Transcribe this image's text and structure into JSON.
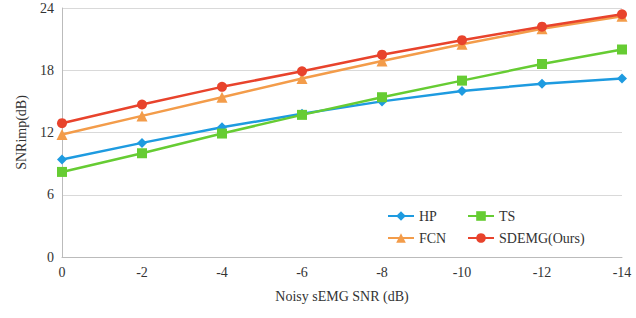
{
  "chart_data": {
    "type": "line",
    "x_label": "Noisy sEMG SNR (dB)",
    "y_label": "SNRimp(dB)",
    "categories": [
      "0",
      "-2",
      "-4",
      "-6",
      "-8",
      "-10",
      "-12",
      "-14"
    ],
    "ylim": [
      0,
      24
    ],
    "yticks": [
      0,
      6,
      12,
      18,
      24
    ],
    "grid": true,
    "legend": "lower right",
    "series": [
      {
        "name": "HP",
        "color": "#1e9be0",
        "marker": "diamond",
        "values": [
          9.4,
          11.0,
          12.5,
          13.8,
          15.0,
          16.0,
          16.7,
          17.2
        ]
      },
      {
        "name": "TS",
        "color": "#66cc33",
        "marker": "square",
        "values": [
          8.2,
          10.0,
          11.9,
          13.7,
          15.4,
          17.0,
          18.6,
          20.0
        ]
      },
      {
        "name": "FCN",
        "color": "#f39c4a",
        "marker": "triangle",
        "values": [
          11.8,
          13.6,
          15.4,
          17.2,
          18.9,
          20.5,
          22.0,
          23.2
        ]
      },
      {
        "name": "SDEMG(Ours)",
        "color": "#e8432c",
        "marker": "circle",
        "values": [
          12.9,
          14.7,
          16.4,
          17.9,
          19.5,
          20.9,
          22.2,
          23.4
        ]
      }
    ]
  }
}
